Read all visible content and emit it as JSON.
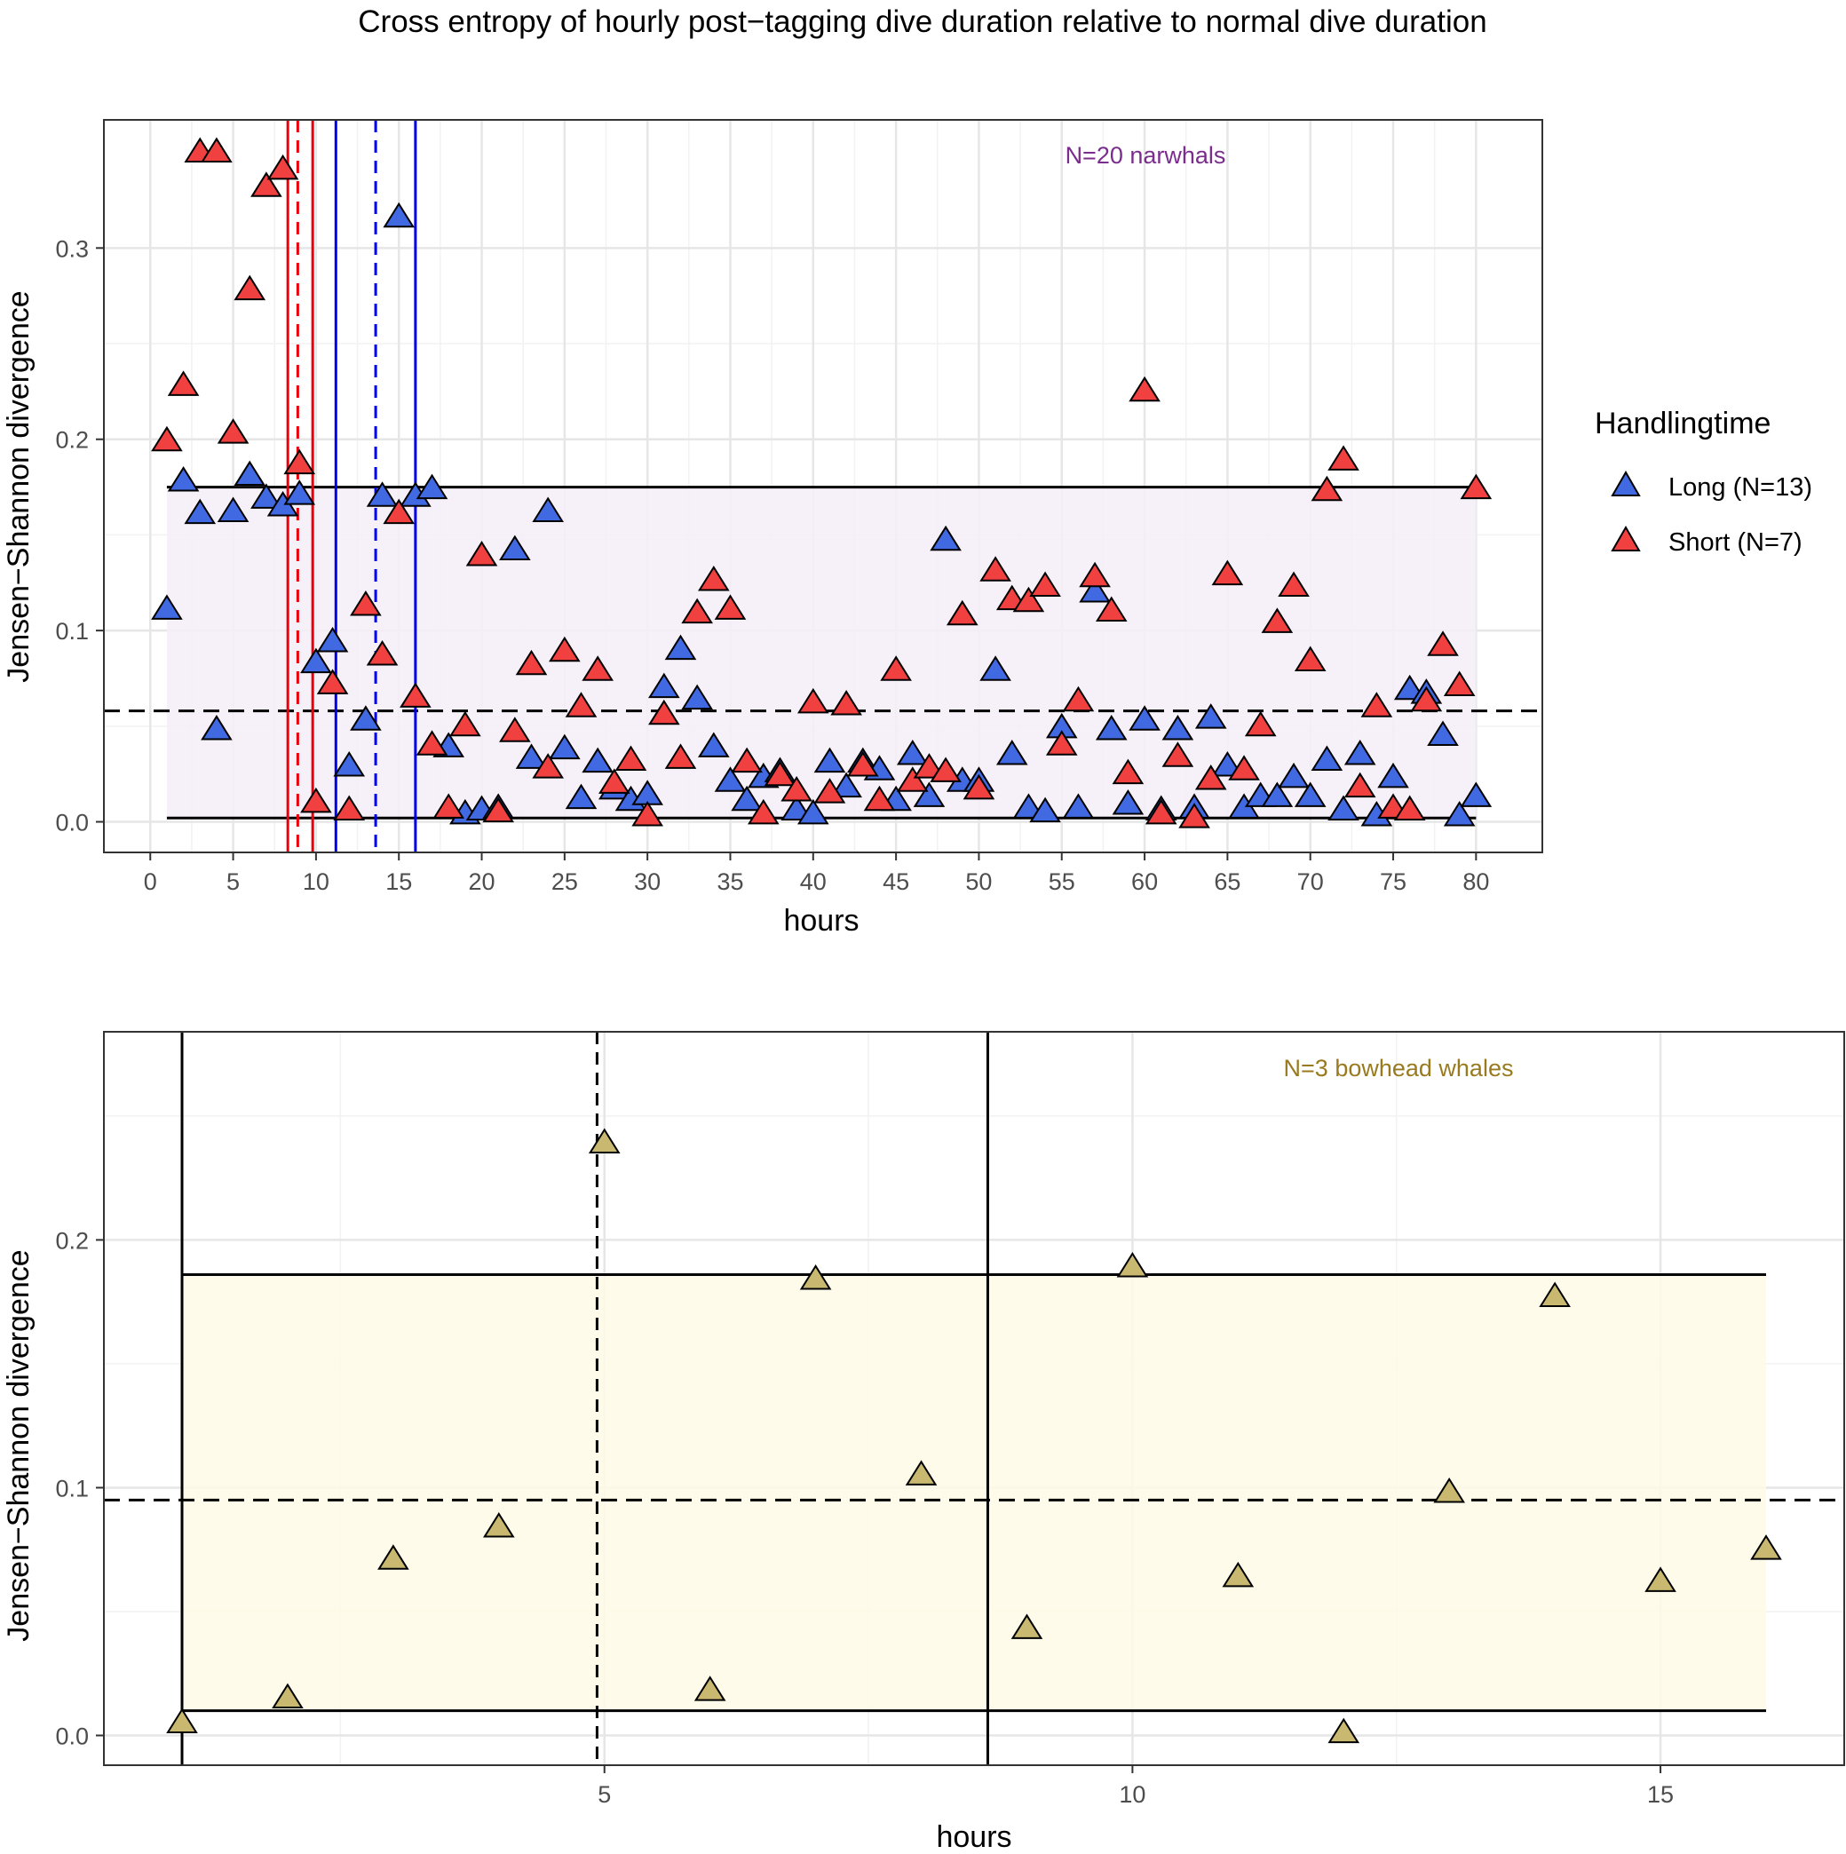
{
  "figure": {
    "title": "Cross entropy of hourly post−tagging dive duration relative to normal dive duration"
  },
  "chart_data": [
    {
      "type": "scatter",
      "title": "",
      "annotation": "N=20 narwhals",
      "annotation_color": "#7B2D8E",
      "xlabel": "hours",
      "ylabel": "Jensen−Shannon divergence",
      "xlim": [
        -2.8,
        84.0
      ],
      "ylim": [
        -0.016,
        0.367
      ],
      "x_ticks": [
        0,
        5,
        10,
        15,
        20,
        25,
        30,
        35,
        40,
        45,
        50,
        55,
        60,
        65,
        70,
        75,
        80
      ],
      "x_tick_labels": [
        "0",
        "5",
        "10",
        "15",
        "20",
        "25",
        "30",
        "35",
        "40",
        "45",
        "50",
        "55",
        "60",
        "65",
        "70",
        "75",
        "80"
      ],
      "y_ticks": [
        0.0,
        0.1,
        0.2,
        0.3
      ],
      "y_tick_labels": [
        "0.0",
        "0.1",
        "0.2",
        "0.3"
      ],
      "grid": true,
      "band": {
        "x_from": 1,
        "x_to": 80,
        "y_low": 0.002,
        "y_high": 0.175,
        "fill": "#F4EFF7"
      },
      "hlines": [
        {
          "y": 0.175,
          "style": "solid",
          "color": "#000000",
          "x_from": 1,
          "x_to": 80
        },
        {
          "y": 0.002,
          "style": "solid",
          "color": "#000000",
          "x_from": 1,
          "x_to": 80
        },
        {
          "y": 0.058,
          "style": "dashed",
          "color": "#000000"
        }
      ],
      "vlines": [
        {
          "x": 8.3,
          "style": "solid",
          "color": "#E8000B"
        },
        {
          "x": 8.9,
          "style": "dashed",
          "color": "#E8000B"
        },
        {
          "x": 9.8,
          "style": "solid",
          "color": "#E8000B"
        },
        {
          "x": 11.2,
          "style": "solid",
          "color": "#0000E6"
        },
        {
          "x": 13.6,
          "style": "dashed",
          "color": "#0000E6"
        },
        {
          "x": 16.0,
          "style": "solid",
          "color": "#0000E6"
        }
      ],
      "legend": {
        "title": "Handlingtime",
        "position": "right",
        "entries": [
          {
            "label": "Long (N=13)",
            "color": "#4169E1"
          },
          {
            "label": "Short (N=7)",
            "color": "#F04040"
          }
        ]
      },
      "series": [
        {
          "name": "Long (N=13)",
          "color": "#4169E1",
          "points": [
            [
              1,
              0.111
            ],
            [
              2,
              0.178
            ],
            [
              3,
              0.161
            ],
            [
              4,
              0.048
            ],
            [
              5,
              0.162
            ],
            [
              6,
              0.181
            ],
            [
              7,
              0.169
            ],
            [
              8,
              0.165
            ],
            [
              9,
              0.171
            ],
            [
              10,
              0.083
            ],
            [
              11,
              0.094
            ],
            [
              12,
              0.029
            ],
            [
              13,
              0.053
            ],
            [
              14,
              0.17
            ],
            [
              15,
              0.316
            ],
            [
              16,
              0.17
            ],
            [
              17,
              0.174
            ],
            [
              18,
              0.039
            ],
            [
              19,
              0.004
            ],
            [
              20,
              0.006
            ],
            [
              21,
              0.007
            ],
            [
              22,
              0.142
            ],
            [
              23,
              0.033
            ],
            [
              24,
              0.162
            ],
            [
              25,
              0.038
            ],
            [
              26,
              0.012
            ],
            [
              27,
              0.031
            ],
            [
              28,
              0.017
            ],
            [
              29,
              0.011
            ],
            [
              30,
              0.014
            ],
            [
              31,
              0.07
            ],
            [
              32,
              0.09
            ],
            [
              33,
              0.064
            ],
            [
              34,
              0.039
            ],
            [
              35,
              0.021
            ],
            [
              36,
              0.011
            ],
            [
              37,
              0.023
            ],
            [
              38,
              0.026
            ],
            [
              39,
              0.006
            ],
            [
              40,
              0.004
            ],
            [
              41,
              0.031
            ],
            [
              42,
              0.018
            ],
            [
              43,
              0.031
            ],
            [
              44,
              0.027
            ],
            [
              45,
              0.011
            ],
            [
              46,
              0.035
            ],
            [
              47,
              0.013
            ],
            [
              48,
              0.147
            ],
            [
              49,
              0.021
            ],
            [
              50,
              0.021
            ],
            [
              51,
              0.079
            ],
            [
              52,
              0.035
            ],
            [
              53,
              0.007
            ],
            [
              54,
              0.005
            ],
            [
              55,
              0.049
            ],
            [
              56,
              0.007
            ],
            [
              57,
              0.12
            ],
            [
              58,
              0.048
            ],
            [
              59,
              0.009
            ],
            [
              60,
              0.053
            ],
            [
              61,
              0.006
            ],
            [
              62,
              0.048
            ],
            [
              63,
              0.007
            ],
            [
              64,
              0.054
            ],
            [
              65,
              0.029
            ],
            [
              66,
              0.007
            ],
            [
              67,
              0.013
            ],
            [
              68,
              0.013
            ],
            [
              69,
              0.023
            ],
            [
              70,
              0.013
            ],
            [
              71,
              0.032
            ],
            [
              72,
              0.006
            ],
            [
              73,
              0.035
            ],
            [
              74,
              0.003
            ],
            [
              75,
              0.023
            ],
            [
              76,
              0.069
            ],
            [
              77,
              0.067
            ],
            [
              78,
              0.045
            ],
            [
              79,
              0.003
            ],
            [
              80,
              0.013
            ]
          ]
        },
        {
          "name": "Short (N=7)",
          "color": "#F04040",
          "points": [
            [
              1,
              0.199
            ],
            [
              2,
              0.228
            ],
            [
              3,
              0.35
            ],
            [
              4,
              0.35
            ],
            [
              5,
              0.203
            ],
            [
              6,
              0.278
            ],
            [
              7,
              0.332
            ],
            [
              8,
              0.341
            ],
            [
              9,
              0.187
            ],
            [
              10,
              0.01
            ],
            [
              11,
              0.072
            ],
            [
              12,
              0.006
            ],
            [
              13,
              0.113
            ],
            [
              14,
              0.087
            ],
            [
              15,
              0.161
            ],
            [
              16,
              0.065
            ],
            [
              17,
              0.04
            ],
            [
              18,
              0.007
            ],
            [
              19,
              0.05
            ],
            [
              20,
              0.139
            ],
            [
              21,
              0.005
            ],
            [
              22,
              0.047
            ],
            [
              23,
              0.082
            ],
            [
              24,
              0.028
            ],
            [
              25,
              0.089
            ],
            [
              26,
              0.06
            ],
            [
              27,
              0.079
            ],
            [
              28,
              0.02
            ],
            [
              29,
              0.032
            ],
            [
              30,
              0.003
            ],
            [
              31,
              0.056
            ],
            [
              32,
              0.033
            ],
            [
              33,
              0.109
            ],
            [
              34,
              0.126
            ],
            [
              35,
              0.111
            ],
            [
              36,
              0.031
            ],
            [
              37,
              0.004
            ],
            [
              38,
              0.024
            ],
            [
              39,
              0.016
            ],
            [
              40,
              0.062
            ],
            [
              41,
              0.015
            ],
            [
              42,
              0.061
            ],
            [
              43,
              0.029
            ],
            [
              44,
              0.011
            ],
            [
              45,
              0.079
            ],
            [
              46,
              0.021
            ],
            [
              47,
              0.028
            ],
            [
              48,
              0.026
            ],
            [
              49,
              0.108
            ],
            [
              50,
              0.017
            ],
            [
              51,
              0.131
            ],
            [
              52,
              0.116
            ],
            [
              53,
              0.115
            ],
            [
              54,
              0.123
            ],
            [
              55,
              0.04
            ],
            [
              56,
              0.063
            ],
            [
              57,
              0.128
            ],
            [
              58,
              0.11
            ],
            [
              59,
              0.025
            ],
            [
              60,
              0.225
            ],
            [
              61,
              0.004
            ],
            [
              62,
              0.034
            ],
            [
              63,
              0.002
            ],
            [
              64,
              0.022
            ],
            [
              65,
              0.129
            ],
            [
              66,
              0.027
            ],
            [
              67,
              0.05
            ],
            [
              68,
              0.104
            ],
            [
              69,
              0.123
            ],
            [
              70,
              0.084
            ],
            [
              71,
              0.173
            ],
            [
              72,
              0.189
            ],
            [
              73,
              0.018
            ],
            [
              74,
              0.06
            ],
            [
              75,
              0.007
            ],
            [
              76,
              0.006
            ],
            [
              77,
              0.063
            ],
            [
              78,
              0.092
            ],
            [
              79,
              0.071
            ],
            [
              80,
              0.174
            ]
          ]
        }
      ]
    },
    {
      "type": "scatter",
      "title": "",
      "annotation": "N=3 bowhead whales",
      "annotation_color": "#9A7A1E",
      "xlabel": "hours",
      "ylabel": "Jensen−Shannon divergence",
      "xlim": [
        0.26,
        16.74
      ],
      "ylim": [
        -0.012,
        0.284
      ],
      "x_ticks": [
        5,
        10,
        15
      ],
      "x_tick_labels": [
        "5",
        "10",
        "15"
      ],
      "x_minor_ticks": [
        2.5,
        7.5,
        12.5
      ],
      "y_ticks": [
        0.0,
        0.1,
        0.2
      ],
      "y_tick_labels": [
        "0.0",
        "0.1",
        "0.2"
      ],
      "y_minor_ticks": [
        0.05,
        0.15,
        0.25
      ],
      "grid": true,
      "band": {
        "x_from": 1,
        "x_to": 16,
        "y_low": 0.01,
        "y_high": 0.186,
        "fill": "#FFFAE6"
      },
      "hlines": [
        {
          "y": 0.186,
          "style": "solid",
          "color": "#000000",
          "x_from": 1,
          "x_to": 16
        },
        {
          "y": 0.01,
          "style": "solid",
          "color": "#000000",
          "x_from": 1,
          "x_to": 16
        },
        {
          "y": 0.095,
          "style": "dashed",
          "color": "#000000"
        }
      ],
      "vlines": [
        {
          "x": 1.0,
          "style": "solid",
          "color": "#000000"
        },
        {
          "x": 4.93,
          "style": "dashed",
          "color": "#000000"
        },
        {
          "x": 8.63,
          "style": "solid",
          "color": "#000000"
        }
      ],
      "series": [
        {
          "name": "",
          "color": "#C8B870",
          "points": [
            [
              1,
              0.005
            ],
            [
              2,
              0.015
            ],
            [
              3,
              0.071
            ],
            [
              4,
              0.084
            ],
            [
              5,
              0.239
            ],
            [
              6,
              0.018
            ],
            [
              7,
              0.184
            ],
            [
              8,
              0.105
            ],
            [
              9,
              0.043
            ],
            [
              10,
              0.189
            ],
            [
              11,
              0.064
            ],
            [
              12,
              0.001
            ],
            [
              13,
              0.098
            ],
            [
              14,
              0.177
            ],
            [
              15,
              0.062
            ],
            [
              16,
              0.075
            ]
          ]
        }
      ]
    }
  ]
}
